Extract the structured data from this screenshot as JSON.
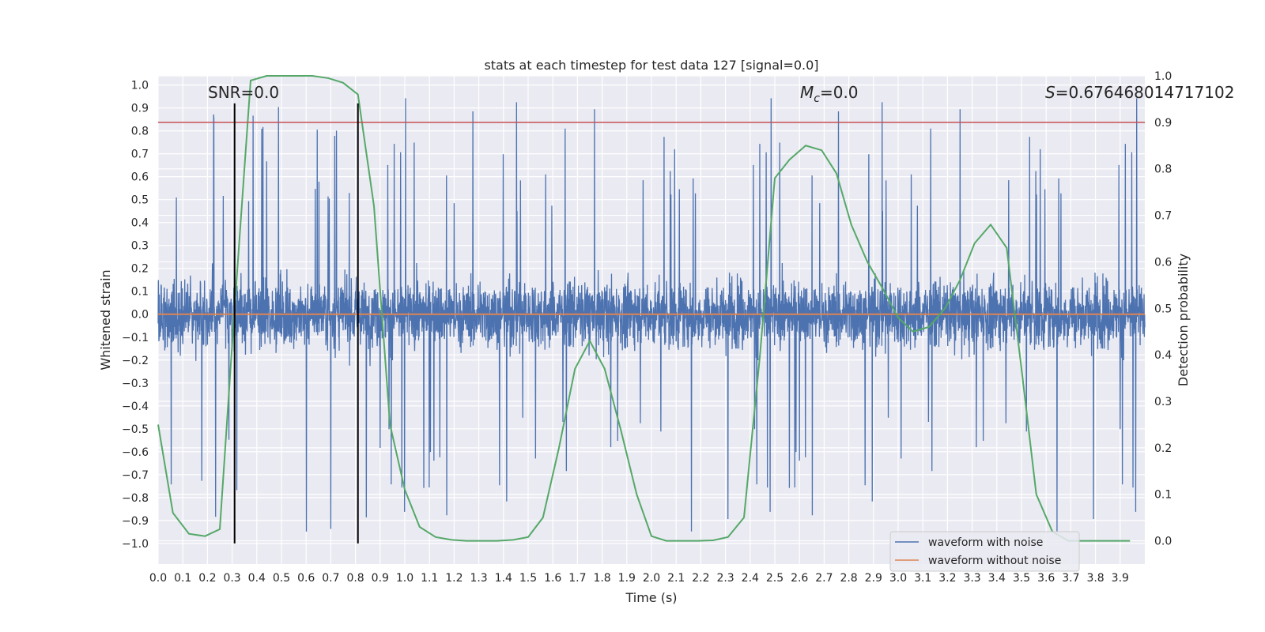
{
  "chart_data": {
    "type": "line",
    "title": "stats at each timestep for test data 127 [signal=0.0]",
    "xlabel": "Time (s)",
    "ylabel": "Whitened strain",
    "y2label": "Detection probability",
    "xlim": [
      0.0,
      4.0
    ],
    "ylim": [
      -1.09,
      1.04
    ],
    "y2lim": [
      -0.05,
      1.0
    ],
    "x_ticks": [
      0.0,
      0.1,
      0.2,
      0.3,
      0.4,
      0.5,
      0.6,
      0.7,
      0.8,
      0.9,
      1.0,
      1.1,
      1.2,
      1.3,
      1.4,
      1.5,
      1.6,
      1.7,
      1.8,
      1.9,
      2.0,
      2.1,
      2.2,
      2.3,
      2.4,
      2.5,
      2.6,
      2.7,
      2.8,
      2.9,
      3.0,
      3.1,
      3.2,
      3.3,
      3.4,
      3.5,
      3.6,
      3.7,
      3.8,
      3.9
    ],
    "y_ticks": [
      1.0,
      0.9,
      0.8,
      0.7,
      0.6,
      0.5,
      0.4,
      0.3,
      0.2,
      0.1,
      0.0,
      -0.1,
      -0.2,
      -0.3,
      -0.4,
      -0.5,
      -0.6,
      -0.7,
      -0.8,
      -0.9,
      -1.0
    ],
    "y2_ticks": [
      1.0,
      0.9,
      0.8,
      0.7,
      0.6,
      0.5,
      0.4,
      0.3,
      0.2,
      0.1,
      0.0
    ],
    "grid": true,
    "legend_position": "bottom-right",
    "annotations": {
      "snr": "SNR=0.0",
      "mc_symbol": "M",
      "mc_sub": "c",
      "mc_value": "=0.0",
      "s_symbol": "S",
      "s_value": "=0.676468014717102"
    },
    "series": [
      {
        "name": "waveform with noise",
        "color": "#4c72b0",
        "axis": "left",
        "kind": "noise",
        "sample_rate": 1000,
        "core_amplitude": 0.25,
        "spike_amplitude": 0.85
      },
      {
        "name": "waveform without noise",
        "color": "#dd8452",
        "axis": "left",
        "x": [
          0.0,
          4.0
        ],
        "y": [
          0.0,
          0.0
        ]
      },
      {
        "color": "#55a868",
        "axis": "right",
        "x": [
          0.0,
          0.06,
          0.125,
          0.19,
          0.25,
          0.31,
          0.375,
          0.44,
          0.5,
          0.56,
          0.625,
          0.69,
          0.75,
          0.81,
          0.875,
          0.94,
          1.0,
          1.06,
          1.125,
          1.19,
          1.25,
          1.31,
          1.375,
          1.44,
          1.5,
          1.56,
          1.625,
          1.69,
          1.75,
          1.81,
          1.875,
          1.94,
          2.0,
          2.06,
          2.125,
          2.19,
          2.25,
          2.31,
          2.375,
          2.44,
          2.5,
          2.56,
          2.625,
          2.69,
          2.75,
          2.81,
          2.875,
          2.94,
          3.0,
          3.06,
          3.125,
          3.19,
          3.25,
          3.31,
          3.375,
          3.44,
          3.5,
          3.56,
          3.625,
          3.69,
          3.75,
          3.81,
          3.875,
          3.94
        ],
        "y": [
          0.25,
          0.06,
          0.015,
          0.01,
          0.025,
          0.5,
          0.99,
          1.0,
          1.0,
          1.0,
          1.0,
          0.995,
          0.985,
          0.96,
          0.72,
          0.25,
          0.11,
          0.03,
          0.008,
          0.002,
          0.0,
          0.0,
          0.0,
          0.002,
          0.008,
          0.05,
          0.2,
          0.37,
          0.43,
          0.37,
          0.24,
          0.1,
          0.01,
          0.0,
          0.0,
          0.0,
          0.001,
          0.008,
          0.05,
          0.4,
          0.78,
          0.82,
          0.85,
          0.84,
          0.79,
          0.68,
          0.6,
          0.54,
          0.48,
          0.45,
          0.46,
          0.5,
          0.56,
          0.64,
          0.68,
          0.63,
          0.37,
          0.1,
          0.02,
          0.0,
          0.0,
          0.0,
          0.0,
          0.0
        ]
      },
      {
        "color": "#c44e52",
        "axis": "right",
        "x": [
          0.0,
          4.0
        ],
        "y": [
          0.9,
          0.9
        ]
      },
      {
        "color": "#000000",
        "axis": "left",
        "kind": "vline",
        "x": [
          0.31,
          0.81
        ],
        "y_range": [
          -1.0,
          0.92
        ]
      }
    ]
  }
}
